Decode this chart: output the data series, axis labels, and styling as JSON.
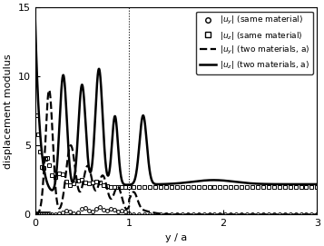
{
  "xlim": [
    0,
    3
  ],
  "ylim": [
    0,
    15
  ],
  "xlabel": "y / a",
  "ylabel": "displacement modulus",
  "yticks": [
    0,
    5,
    10,
    15
  ],
  "xticks": [
    0,
    1,
    2,
    3
  ],
  "vline_x": 1.0,
  "label_fontsize": 8,
  "tick_fontsize": 8,
  "legend_fontsize": 6.5,
  "background_color": "#ffffff",
  "line_color": "#000000",
  "figsize": [
    3.57,
    2.71
  ],
  "dpi": 100
}
